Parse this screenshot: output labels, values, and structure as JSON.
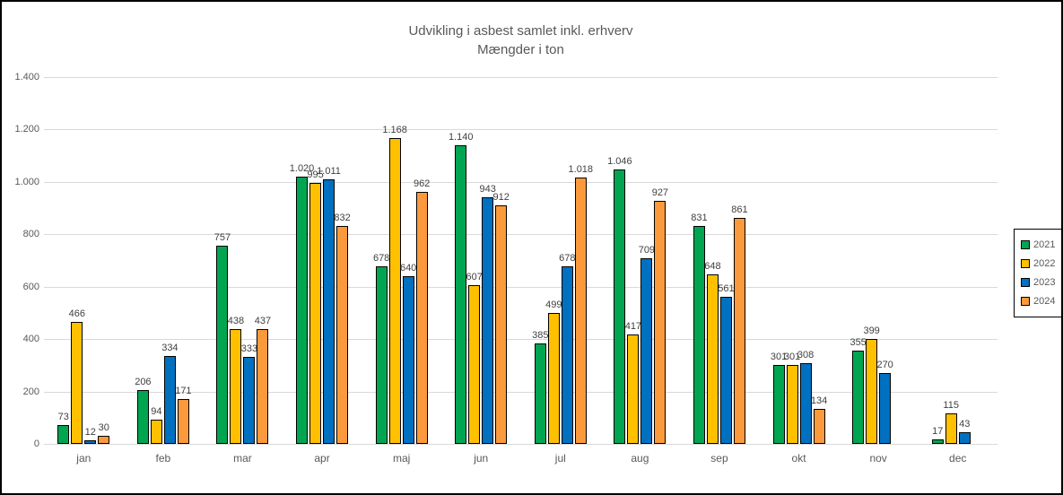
{
  "title": {
    "line1": "Udvikling i asbest samlet inkl. erhverv",
    "line2": "Mængder i ton"
  },
  "chart_data": {
    "type": "bar",
    "title": "Udvikling i asbest samlet inkl. erhverv",
    "subtitle": "Mængder i ton",
    "xlabel": "",
    "ylabel": "",
    "ylim": [
      0,
      1400
    ],
    "ytick_step": 200,
    "ytick_labels": [
      "0",
      "200",
      "400",
      "600",
      "800",
      "1.000",
      "1.200",
      "1.400"
    ],
    "grid": true,
    "legend_position": "right",
    "categories": [
      "jan",
      "feb",
      "mar",
      "apr",
      "maj",
      "jun",
      "jul",
      "aug",
      "sep",
      "okt",
      "nov",
      "dec"
    ],
    "series": [
      {
        "name": "2021",
        "color": "#00A551",
        "values": [
          73,
          206,
          757,
          1020,
          678,
          1140,
          385,
          1046,
          831,
          301,
          355,
          17
        ]
      },
      {
        "name": "2022",
        "color": "#FFC000",
        "values": [
          466,
          94,
          438,
          995,
          1168,
          607,
          499,
          417,
          648,
          301,
          399,
          115
        ]
      },
      {
        "name": "2023",
        "color": "#0070C0",
        "values": [
          12,
          334,
          333,
          1011,
          640,
          943,
          678,
          709,
          561,
          308,
          270,
          43
        ]
      },
      {
        "name": "2024",
        "color": "#FB9A3C",
        "values": [
          30,
          171,
          437,
          832,
          962,
          912,
          1018,
          927,
          861,
          134,
          null,
          null
        ]
      }
    ]
  },
  "colors": {
    "title_text": "#595959",
    "axis_text": "#595959",
    "value_label_text": "#404040",
    "gridline": "#d9d9d9",
    "bar_border": "#000000",
    "frame_border": "#000000",
    "background": "#ffffff"
  }
}
